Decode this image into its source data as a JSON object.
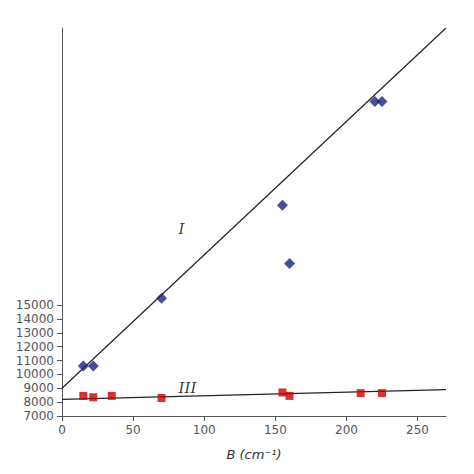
{
  "chart_data": {
    "type": "scatter",
    "xlabel": "B (cm⁻¹)",
    "xlim": [
      0,
      270
    ],
    "xticks": [
      0,
      50,
      100,
      150,
      200,
      250
    ],
    "ylim": [
      7000,
      35000
    ],
    "yticks": [
      7000,
      8000,
      9000,
      10000,
      11000,
      12000,
      13000,
      14000,
      15000
    ],
    "grid": false,
    "series": [
      {
        "type": "line",
        "color": "#222222",
        "line_style": "solid",
        "x": [
          0,
          270
        ],
        "values": [
          9000,
          35000
        ]
      },
      {
        "type": "line",
        "color": "#222222",
        "line_style": "solid",
        "x": [
          0,
          270
        ],
        "values": [
          8200,
          8900
        ]
      },
      {
        "type": "scatter",
        "marker": "diamond",
        "color": "#1a237e",
        "x": [
          15,
          22,
          70,
          155,
          160,
          220,
          225
        ],
        "values": [
          10600,
          10600,
          15500,
          22200,
          18000,
          29700,
          29700
        ]
      },
      {
        "type": "scatter",
        "marker": "square",
        "color": "#cc0000",
        "x": [
          15,
          22,
          35,
          70,
          155,
          160,
          210,
          225
        ],
        "values": [
          8450,
          8350,
          8450,
          8300,
          8700,
          8450,
          8650,
          8650
        ]
      }
    ],
    "annotations": [
      {
        "text": "I",
        "x": 82,
        "y": 20500
      },
      {
        "text": "III",
        "x": 82,
        "y": 9050
      }
    ]
  }
}
